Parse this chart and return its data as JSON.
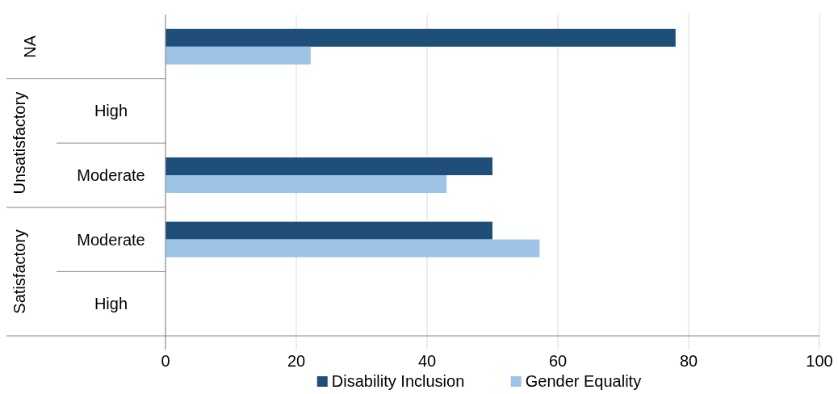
{
  "chart_data": {
    "type": "bar",
    "orientation": "horizontal",
    "categories": [
      null,
      "High",
      "Moderate",
      "Moderate",
      "High"
    ],
    "series": [
      {
        "name": "Disability Inclusion",
        "color": "#1f4e79",
        "values": [
          78,
          null,
          50,
          50,
          null
        ]
      },
      {
        "name": "Gender Equality",
        "color": "#9dc3e6",
        "values": [
          22.2,
          null,
          43,
          57.2,
          null
        ]
      }
    ],
    "annotations": [
      "NA",
      "Unsatisfactory",
      "Satisfactory"
    ],
    "xlim": [
      0,
      100
    ],
    "xticks": [
      0,
      20,
      40,
      60,
      80,
      100
    ],
    "grid": "x",
    "legend": "bottom"
  }
}
